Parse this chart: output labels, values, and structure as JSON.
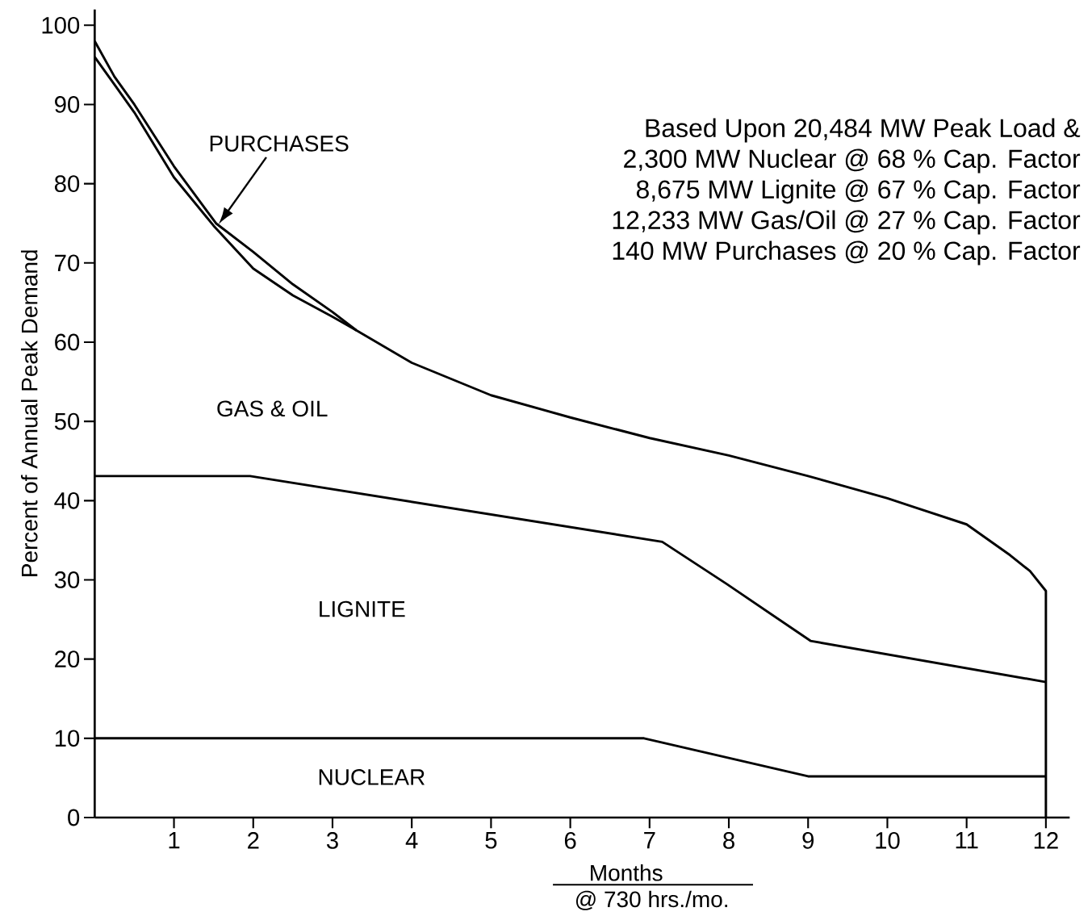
{
  "chart_data": {
    "type": "line",
    "xlabel": "Months",
    "ylabel": "Percent of Annual Peak Demand",
    "xlim": [
      0,
      12.3
    ],
    "ylim": [
      0,
      102
    ],
    "xticks": [
      1,
      2,
      3,
      4,
      5,
      6,
      7,
      8,
      9,
      10,
      11,
      12
    ],
    "yticks": [
      0,
      10,
      20,
      30,
      40,
      50,
      60,
      70,
      80,
      90,
      100
    ],
    "grid": false,
    "marker": "none",
    "line_style": "solid",
    "series": [
      {
        "color": "#000000",
        "x": [
          0,
          0.25,
          0.5,
          1,
          1.53,
          2,
          2.5,
          3,
          3.3,
          4,
          5,
          6,
          7,
          8,
          9,
          10,
          10.33,
          11,
          11.55,
          11.8,
          12,
          12
        ],
        "values": [
          98,
          93.5,
          90,
          82.2,
          75,
          71.4,
          67.3,
          63.8,
          61.5,
          57.4,
          53.3,
          50.5,
          47.9,
          45.7,
          43.1,
          40.3,
          39.2,
          37,
          33.1,
          31.1,
          28.6,
          0
        ]
      },
      {
        "color": "#000000",
        "x": [
          0,
          0.25,
          0.5,
          1,
          1.5,
          2,
          2.5,
          3,
          3.3
        ],
        "values": [
          96,
          92.5,
          89,
          80.8,
          74.7,
          69.3,
          65.9,
          63.2,
          61.5
        ]
      },
      {
        "color": "#000000",
        "x": [
          0,
          1.96,
          7.16,
          7.97,
          9.03,
          12
        ],
        "values": [
          43.1,
          43.1,
          34.8,
          29.5,
          22.3,
          17.1
        ]
      },
      {
        "color": "#000000",
        "x": [
          0,
          6.93,
          9,
          12
        ],
        "values": [
          10,
          10,
          5.2,
          5.2
        ]
      }
    ],
    "annotations": [
      "PURCHASES",
      "GAS & OIL",
      "LIGNITE",
      "NUCLEAR",
      "Based Upon 20,484 MW Peak Load &",
      "2,300 MW Nuclear @ 68 % Cap. Factor",
      "8,675 MW Lignite @ 67 % Cap. Factor",
      "12,233 MW Gas/Oil @ 27 % Cap. Factor",
      "140 MW Purchases @ 20 % Cap. Factor",
      "@ 730 hrs./mo."
    ]
  }
}
